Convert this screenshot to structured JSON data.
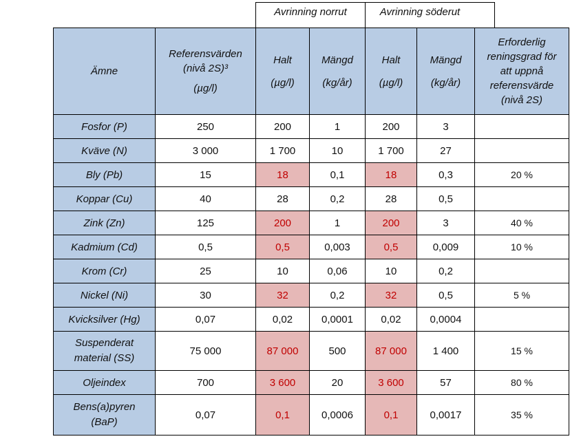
{
  "group_headers": {
    "north": "Avrinning norrut",
    "south": "Avrinning söderut"
  },
  "header": {
    "substance": "Ämne",
    "reference_line1": "Referensvärden",
    "reference_line2": "(nivå 2S)³",
    "reference_unit": "(µg/l)",
    "halt": "Halt",
    "halt_unit": "(µg/l)",
    "mangd": "Mängd",
    "mangd_unit": "(kg/år)",
    "required": "Erforderlig reningsgrad för att uppnå referensvärde (nivå 2S)"
  },
  "rows": [
    {
      "substance": "Fosfor (P)",
      "ref": "250",
      "n_halt": "200",
      "n_mangd": "1",
      "s_halt": "200",
      "s_mangd": "3",
      "required": ""
    },
    {
      "substance": "Kväve (N)",
      "ref": "3 000",
      "n_halt": "1 700",
      "n_mangd": "10",
      "s_halt": "1 700",
      "s_mangd": "27",
      "required": ""
    },
    {
      "substance": "Bly (Pb)",
      "ref": "15",
      "n_halt": "18",
      "n_mangd": "0,1",
      "s_halt": "18",
      "s_mangd": "0,3",
      "required": "20 %"
    },
    {
      "substance": "Koppar (Cu)",
      "ref": "40",
      "n_halt": "28",
      "n_mangd": "0,2",
      "s_halt": "28",
      "s_mangd": "0,5",
      "required": ""
    },
    {
      "substance": "Zink (Zn)",
      "ref": "125",
      "n_halt": "200",
      "n_mangd": "1",
      "s_halt": "200",
      "s_mangd": "3",
      "required": "40 %"
    },
    {
      "substance": "Kadmium (Cd)",
      "ref": "0,5",
      "n_halt": "0,5",
      "n_mangd": "0,003",
      "s_halt": "0,5",
      "s_mangd": "0,009",
      "required": "10 %"
    },
    {
      "substance": "Krom (Cr)",
      "ref": "25",
      "n_halt": "10",
      "n_mangd": "0,06",
      "s_halt": "10",
      "s_mangd": "0,2",
      "required": ""
    },
    {
      "substance": "Nickel (Ni)",
      "ref": "30",
      "n_halt": "32",
      "n_mangd": "0,2",
      "s_halt": "32",
      "s_mangd": "0,5",
      "required": "5 %"
    },
    {
      "substance": "Kvicksilver (Hg)",
      "ref": "0,07",
      "n_halt": "0,02",
      "n_mangd": "0,0001",
      "s_halt": "0,02",
      "s_mangd": "0,0004",
      "required": ""
    },
    {
      "substance": "Suspenderat material (SS)",
      "ref": "75 000",
      "n_halt": "87 000",
      "n_mangd": "500",
      "s_halt": "87 000",
      "s_mangd": "1 400",
      "required": "15 %"
    },
    {
      "substance": "Oljeindex",
      "ref": "700",
      "n_halt": "3 600",
      "n_mangd": "20",
      "s_halt": "3 600",
      "s_mangd": "57",
      "required": "80 %"
    },
    {
      "substance": "Bens(a)pyren (BaP)",
      "ref": "0,07",
      "n_halt": "0,1",
      "n_mangd": "0,0006",
      "s_halt": "0,1",
      "s_mangd": "0,0017",
      "required": "35 %"
    }
  ],
  "colors": {
    "header_fill": "#b8cce4",
    "exceed_fill": "#e6b8b7",
    "exceed_text": "#c00000"
  }
}
